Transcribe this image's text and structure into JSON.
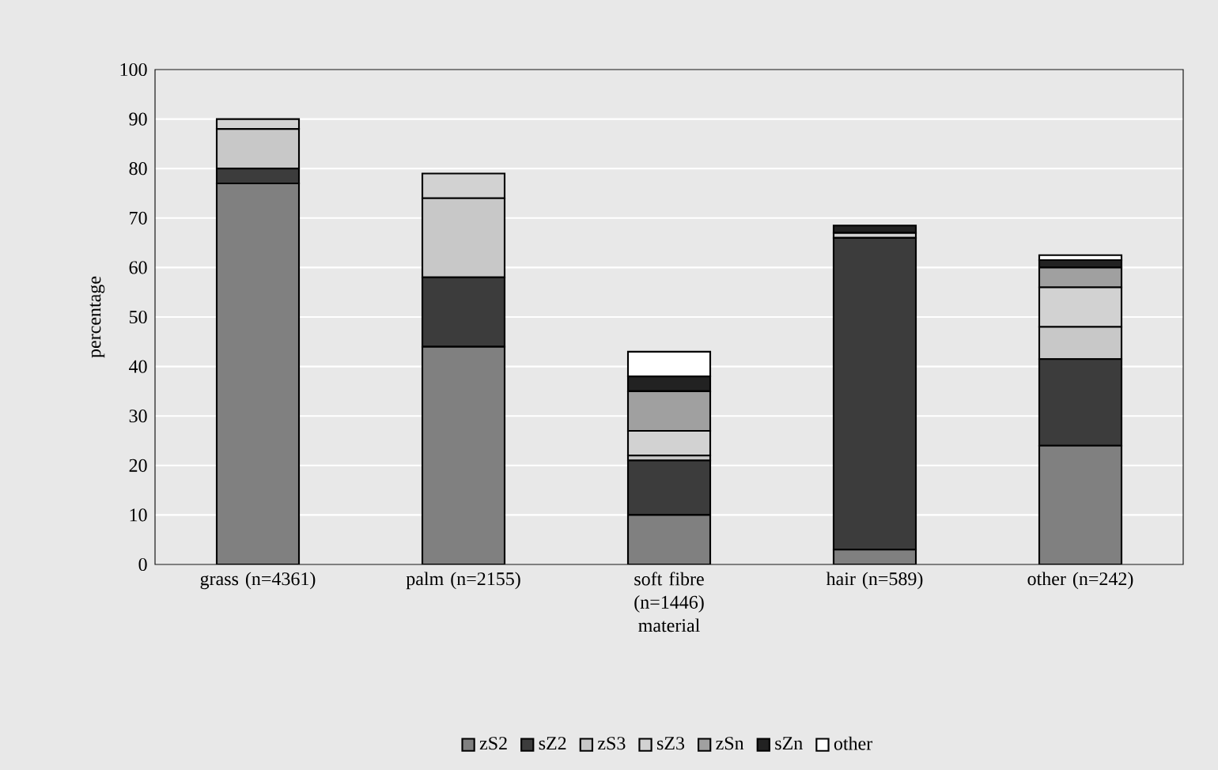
{
  "chart_data": {
    "type": "bar",
    "stacked": true,
    "xlabel": "material",
    "ylabel": "percentage",
    "categories": [
      "grass (n=4361)",
      "palm (n=2155)",
      "soft fibre (n=1446)",
      "hair (n=589)",
      "other (n=242)"
    ],
    "series": [
      {
        "name": "zS2",
        "color": "#808080",
        "values": [
          77,
          44,
          10,
          3,
          24
        ]
      },
      {
        "name": "sZ2",
        "color": "#3c3c3c",
        "values": [
          3,
          14,
          11,
          63,
          17.5
        ]
      },
      {
        "name": "zS3",
        "color": "#c8c8c8",
        "values": [
          8,
          16,
          1,
          0,
          6.5
        ]
      },
      {
        "name": "sZ3",
        "color": "#d2d2d2",
        "values": [
          2,
          5,
          5,
          1,
          8
        ]
      },
      {
        "name": "zSn",
        "color": "#a0a0a0",
        "values": [
          0,
          0,
          8,
          0,
          4
        ]
      },
      {
        "name": "sZn",
        "color": "#222222",
        "values": [
          0,
          0,
          3,
          1.5,
          1.5
        ]
      },
      {
        "name": "other",
        "color": "#ffffff",
        "values": [
          0,
          0,
          5,
          0,
          1
        ]
      }
    ],
    "ylim": [
      0,
      100
    ],
    "yticks": [
      0,
      10,
      20,
      30,
      40,
      50,
      60,
      70,
      80,
      90,
      100
    ],
    "grid": "y",
    "legend": "bottom"
  }
}
